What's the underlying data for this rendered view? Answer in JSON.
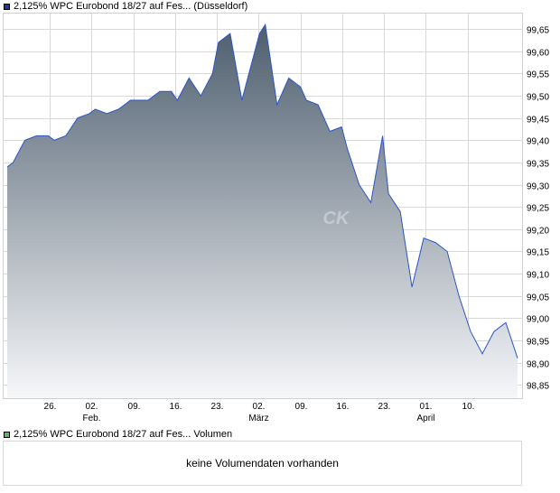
{
  "price_legend": {
    "label": "2,125% WPC Eurobond 18/27 auf Fes... (Düsseldorf)",
    "color": "#1f3a93"
  },
  "volume_legend": {
    "label": "2,125% WPC Eurobond 18/27 auf Fes... Volumen",
    "color": "#5cb85c"
  },
  "watermark": "CK",
  "volume_message": "keine Volumendaten vorhanden",
  "colors": {
    "line": "#2a55c8",
    "fill_top": "#4e5e6e",
    "fill_bottom": "#f6f7f9",
    "grid": "#d8d8d8"
  },
  "chart_data": {
    "type": "area",
    "y_ticks": [
      "99,65",
      "99,60",
      "99,55",
      "99,50",
      "99,45",
      "99,40",
      "99,35",
      "99,30",
      "99,25",
      "99,20",
      "99,15",
      "99,10",
      "99,05",
      "99,00",
      "98,95",
      "98,90",
      "98,85"
    ],
    "x_ticks": [
      {
        "label": "26.",
        "month": ""
      },
      {
        "label": "02.",
        "month": "Feb."
      },
      {
        "label": "09.",
        "month": ""
      },
      {
        "label": "16.",
        "month": ""
      },
      {
        "label": "23.",
        "month": ""
      },
      {
        "label": "02.",
        "month": "März"
      },
      {
        "label": "09.",
        "month": ""
      },
      {
        "label": "16.",
        "month": ""
      },
      {
        "label": "23.",
        "month": ""
      },
      {
        "label": "01.",
        "month": "April"
      },
      {
        "label": "10.",
        "month": ""
      }
    ],
    "ylim": [
      98.82,
      99.685
    ],
    "x": [
      "01-19",
      "01-20",
      "01-22",
      "01-24",
      "01-26",
      "01-27",
      "01-29",
      "01-31",
      "02-02",
      "02-03",
      "02-05",
      "02-07",
      "02-09",
      "02-10",
      "02-12",
      "02-14",
      "02-16",
      "02-17",
      "02-19",
      "02-21",
      "02-23",
      "02-24",
      "02-26",
      "02-28",
      "03-02",
      "03-03",
      "03-05",
      "03-07",
      "03-09",
      "03-10",
      "03-12",
      "03-14",
      "03-16",
      "03-17",
      "03-19",
      "03-21",
      "03-23",
      "03-24",
      "03-26",
      "03-28",
      "03-30",
      "04-01",
      "04-03",
      "04-05",
      "04-07",
      "04-09",
      "04-11",
      "04-13",
      "04-15"
    ],
    "values": [
      99.34,
      99.35,
      99.4,
      99.41,
      99.41,
      99.4,
      99.41,
      99.45,
      99.46,
      99.47,
      99.46,
      99.47,
      99.49,
      99.49,
      99.49,
      99.51,
      99.51,
      99.49,
      99.54,
      99.5,
      99.55,
      99.62,
      99.64,
      99.49,
      99.64,
      99.66,
      99.48,
      99.54,
      99.52,
      99.49,
      99.48,
      99.42,
      99.43,
      99.38,
      99.3,
      99.26,
      99.41,
      99.28,
      99.24,
      99.07,
      99.18,
      99.17,
      99.15,
      99.05,
      98.97,
      98.92,
      98.97,
      98.99,
      98.91
    ]
  }
}
